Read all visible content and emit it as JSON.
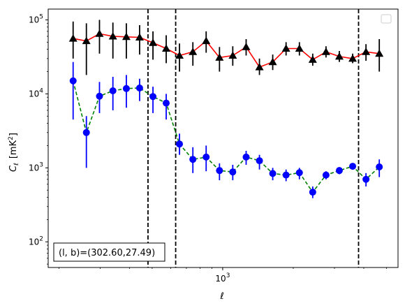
{
  "chart_data": {
    "type": "scatter",
    "xlabel": "ℓ",
    "ylabel_main": "C",
    "ylabel_sub": "ℓ",
    "ylabel_unit": "[mK",
    "ylabel_unit_sup": "2",
    "ylabel_unit_end": "]",
    "xscale": "log",
    "yscale": "log",
    "xlim": [
      180,
      5600
    ],
    "ylim": [
      45,
      140000
    ],
    "grid": false,
    "legend": "top-right",
    "x_ticks": [
      {
        "value": 1000,
        "base": "10",
        "exp": "3"
      }
    ],
    "y_ticks": [
      {
        "value": 100,
        "base": "10",
        "exp": "2"
      },
      {
        "value": 1000,
        "base": "10",
        "exp": "3"
      },
      {
        "value": 10000,
        "base": "10",
        "exp": "4"
      },
      {
        "value": 100000,
        "base": "10",
        "exp": "5"
      }
    ],
    "vlines": [
      480,
      630,
      3800
    ],
    "annotation": "(l, b)=(302.60,27.49)",
    "series": [
      {
        "color": "#ff0000",
        "line_style": "solid",
        "marker": "triangle",
        "marker_color": "#000000",
        "x": [
          230,
          262,
          298,
          340,
          388,
          442,
          504,
          574,
          654,
          746,
          850,
          969,
          1104,
          1259,
          1435,
          1635,
          1864,
          2125,
          2422,
          2760,
          3146,
          3586,
          4088,
          4659
        ],
        "y": [
          56000,
          52000,
          65000,
          60000,
          59000,
          58000,
          49000,
          41000,
          33000,
          37000,
          52000,
          31000,
          33000,
          43000,
          23000,
          27000,
          41000,
          41000,
          29000,
          37000,
          32000,
          30000,
          37000,
          35000
        ],
        "y_low": [
          30000,
          18000,
          35000,
          30000,
          30000,
          34000,
          29000,
          26000,
          20000,
          24000,
          36000,
          20000,
          24000,
          33000,
          18000,
          21000,
          33000,
          33000,
          24000,
          31000,
          27000,
          26000,
          28000,
          20000
        ],
        "y_high": [
          95000,
          90000,
          100000,
          92000,
          90000,
          85000,
          70000,
          62000,
          48000,
          50000,
          70000,
          43000,
          44000,
          55000,
          30000,
          34000,
          50000,
          50000,
          35000,
          44000,
          38000,
          35000,
          47000,
          55000
        ]
      },
      {
        "color": "#008000",
        "line_style": "dashed",
        "marker": "circle",
        "marker_color": "#0000ff",
        "x": [
          230,
          262,
          298,
          340,
          388,
          442,
          504,
          574,
          654,
          746,
          850,
          969,
          1104,
          1259,
          1435,
          1635,
          1864,
          2125,
          2422,
          2760,
          3146,
          3586,
          4088,
          4659
        ],
        "y": [
          15000,
          3000,
          9300,
          11000,
          11800,
          12000,
          9200,
          7500,
          2100,
          1300,
          1400,
          920,
          880,
          1400,
          1250,
          840,
          800,
          860,
          470,
          800,
          920,
          1050,
          700,
          1030
        ],
        "y_low": [
          4500,
          1000,
          5500,
          6000,
          6500,
          8000,
          5500,
          4500,
          1500,
          850,
          900,
          680,
          680,
          1100,
          950,
          680,
          660,
          700,
          390,
          700,
          820,
          950,
          560,
          750
        ],
        "y_high": [
          27000,
          5000,
          14500,
          17000,
          18000,
          16000,
          12500,
          10000,
          2900,
          1900,
          2000,
          1150,
          1100,
          1700,
          1500,
          1000,
          950,
          1000,
          560,
          900,
          1020,
          1150,
          850,
          1300
        ]
      }
    ]
  }
}
